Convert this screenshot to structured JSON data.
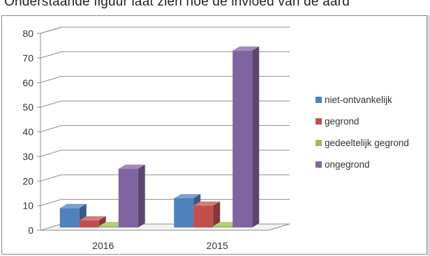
{
  "caption": "Onderstaande figuur laat zien hoe de invloed van de aard",
  "chart_data": {
    "type": "bar",
    "subtype": "3d-clustered-column",
    "categories": [
      "2016",
      "2015"
    ],
    "series": [
      {
        "name": "niet-ontvankelijk",
        "values": [
          9,
          13
        ],
        "color": "#4f81bd"
      },
      {
        "name": "gegrond",
        "values": [
          4,
          10
        ],
        "color": "#c0504d"
      },
      {
        "name": "gedeeltelijk gegrond",
        "values": [
          1,
          0.5
        ],
        "color": "#9bbb59"
      },
      {
        "name": "ongegrond",
        "values": [
          25,
          73
        ],
        "color": "#8064a2"
      }
    ],
    "ylim": [
      0,
      80
    ],
    "yticks": [
      "0",
      "10",
      "20",
      "30",
      "40",
      "50",
      "60",
      "70",
      "80"
    ],
    "grid": true,
    "legend_position": "right"
  }
}
